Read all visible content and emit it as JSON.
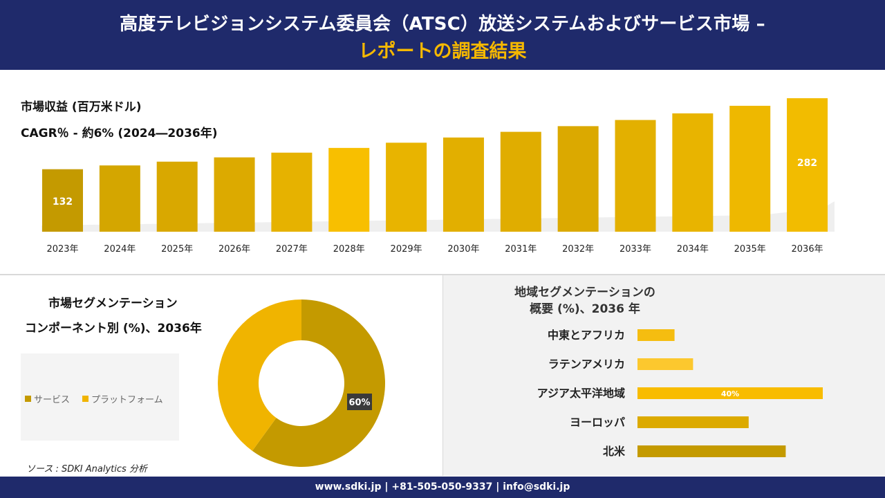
{
  "header": {
    "title_line1": "高度テレビジョンシステム委員会（ATSC）放送システムおよびサービス市場 –",
    "title_line2": "レポートの調査結果"
  },
  "revenue": {
    "title": "市場収益 (百万米ドル)",
    "cagr": "CAGR％ - 約6% (2024―2036年)"
  },
  "segment": {
    "title_line1": "市場セグメンテーション",
    "title_line2": "コンポーネント別 (%)、2036年",
    "legend": [
      {
        "label": "サービス",
        "color": "#c49a00"
      },
      {
        "label": "プラットフォーム",
        "color": "#f0b400"
      }
    ]
  },
  "regional": {
    "title_line1": "地域セグメンテーションの",
    "title_line2": "概要 (%)、2036 年"
  },
  "source": "ソース : SDKI Analytics 分析",
  "footer": "www.sdki.jp | +81-505-050-9337 | info@sdki.jp",
  "chart_data": [
    {
      "type": "bar",
      "title": "市場収益 (百万米ドル)",
      "categories": [
        "2023年",
        "2024年",
        "2025年",
        "2026年",
        "2027年",
        "2028年",
        "2029年",
        "2030年",
        "2031年",
        "2032年",
        "2033年",
        "2034年",
        "2035年",
        "2036年"
      ],
      "values": [
        132,
        140,
        148,
        157,
        167,
        177,
        188,
        199,
        211,
        223,
        236,
        250,
        266,
        282
      ],
      "data_labels": {
        "2023年": "132",
        "2036年": "282"
      },
      "colors": [
        "#c49a00",
        "#d4a600",
        "#d9a800",
        "#dcaa00",
        "#e6b200",
        "#f8bf00",
        "#e8b400",
        "#e2af00",
        "#e0ad00",
        "#dba900",
        "#e3b000",
        "#e8b400",
        "#eeb800",
        "#f2bc00"
      ]
    },
    {
      "type": "pie",
      "title": "市場セグメンテーション コンポーネント別 (%)、2036年",
      "categories": [
        "サービス",
        "プラットフォーム"
      ],
      "values": [
        60,
        40
      ],
      "data_labels": [
        "60%",
        ""
      ],
      "colors": [
        "#c49a00",
        "#f0b400"
      ]
    },
    {
      "type": "bar",
      "orientation": "horizontal",
      "title": "地域セグメンテーションの概要 (%)、2036 年",
      "categories": [
        "中東とアフリカ",
        "ラテンアメリカ",
        "アジア太平洋地域",
        "ヨーロッパ",
        "北米"
      ],
      "values": [
        8,
        12,
        40,
        24,
        32
      ],
      "data_labels": [
        "",
        "",
        "40%",
        "",
        ""
      ],
      "colors": [
        "#f5bd10",
        "#fcc82e",
        "#f8bc00",
        "#dcaa00",
        "#c49a00"
      ]
    }
  ]
}
